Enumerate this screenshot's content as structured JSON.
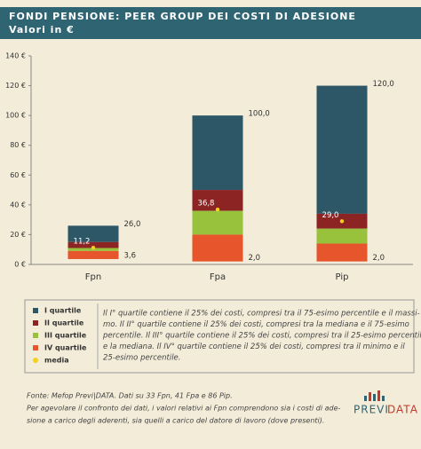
{
  "chart_data": {
    "type": "quartile-bar",
    "title": "FONDI PENSIONE: PEER GROUP DEI COSTI DI ADESIONE",
    "subtitle": "Valori in €",
    "categories": [
      "Fpn",
      "Fpa",
      "Pip"
    ],
    "min": [
      3.6,
      2.0,
      2.0
    ],
    "q1": [
      9,
      20,
      14
    ],
    "median": [
      11,
      36,
      24
    ],
    "q3": [
      15,
      50,
      34
    ],
    "max": [
      26.0,
      100.0,
      120.0
    ],
    "mean": [
      11.2,
      36.8,
      29.0
    ],
    "min_labels": [
      "3,6",
      "2,0",
      "2,0"
    ],
    "max_labels": [
      "26,0",
      "100,0",
      "120,0"
    ],
    "mean_labels": [
      "11,2",
      "36,8",
      "29,0"
    ],
    "series": [
      {
        "name": "I quartile",
        "color": "#2d5766"
      },
      {
        "name": "II quartile",
        "color": "#8c2424"
      },
      {
        "name": "III quartile",
        "color": "#98c23c"
      },
      {
        "name": "IV quartile",
        "color": "#e6552b"
      }
    ],
    "mean_name": "media",
    "mean_color": "#f2d21b",
    "ylim": [
      0,
      140
    ],
    "yticks": [
      {
        "value": 0,
        "label": "0 €"
      },
      {
        "value": 20,
        "label": "20 €"
      },
      {
        "value": 40,
        "label": "40 €"
      },
      {
        "value": 60,
        "label": "60 €"
      },
      {
        "value": 80,
        "label": "80 €"
      },
      {
        "value": 100,
        "label": "100 €"
      },
      {
        "value": 120,
        "label": "120 €"
      },
      {
        "value": 140,
        "label": "140 €"
      }
    ],
    "legend_text": [
      "Il I° quartile contiene il 25% dei costi, compresi tra il 75-esimo percentile e il massi-",
      "mo. Il II° quartile contiene il 25% dei costi, compresi tra la mediana e il 75-esimo",
      "percentile. Il III° quartile contiene il 25% dei costi, compresi tra il 25-esimo percentile",
      "e la mediana. Il IV° quartile contiene il 25% dei costi, compresi tra il minimo e il",
      "25-esimo percentile."
    ],
    "notes": [
      "Fonte: Mefop Previ|DATA. Dati su 33 Fpn, 41 Fpa e 86 Pip.",
      "Per agevolare il confronto dei dati, i valori relativi ai Fpn comprendono sia i costi di ade-",
      "sione a carico degli aderenti, sia quelli a carico del datore di lavoro (dove presenti)."
    ],
    "logo": [
      "PREVI",
      "DATA"
    ]
  }
}
